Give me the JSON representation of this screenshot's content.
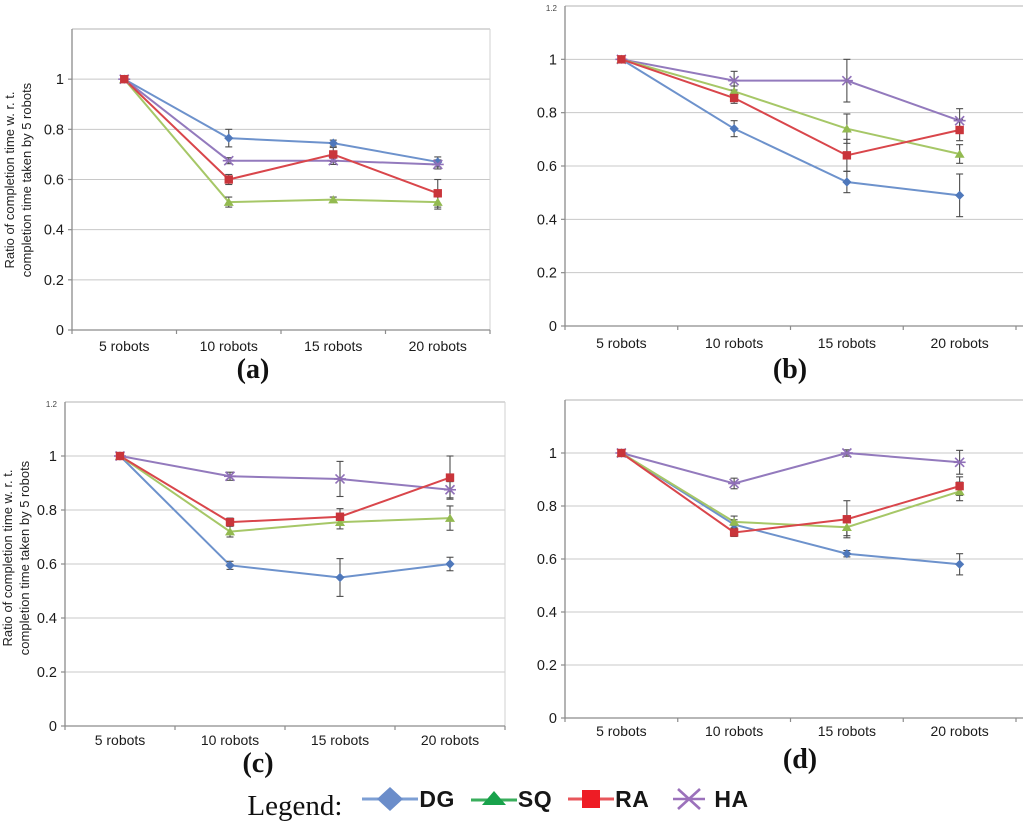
{
  "page": {
    "background": "#ffffff"
  },
  "legend": {
    "title": "Legend:",
    "position": "bottom",
    "items": [
      {
        "label": "DG",
        "marker": "diamond",
        "color": "#6b8dca",
        "line_color": "#7d9fd4"
      },
      {
        "label": "SQ",
        "marker": "triangle",
        "color": "#18a24b",
        "line_color": "#3aae5c"
      },
      {
        "label": "RA",
        "marker": "square",
        "color": "#ee1c25",
        "line_color": "#e8565b"
      },
      {
        "label": "HA",
        "marker": "asterisk",
        "color": "#9b71bb",
        "line_color": "#9b71bb"
      }
    ]
  },
  "chart_data": [
    {
      "id": "a",
      "caption": "(a)",
      "type": "line",
      "error_bars": true,
      "title": "",
      "xlabel": "",
      "ylabel": "Ratio of completion time w. r. t.\ncompletion time taken by 5 robots",
      "ymax_minor_label": "",
      "categories": [
        "5 robots",
        "10 robots",
        "15 robots",
        "20 robots"
      ],
      "yticks": [
        0,
        0.2,
        0.4,
        0.6,
        0.8,
        1
      ],
      "ylim": [
        0,
        1.2
      ],
      "grid": true,
      "series": [
        {
          "name": "DG",
          "marker": "diamond",
          "color": "#4f78bb",
          "line": "#6d92cc",
          "values": [
            1.0,
            0.765,
            0.745,
            0.67
          ],
          "errors": [
            0,
            0.035,
            0.012,
            0.02
          ]
        },
        {
          "name": "SQ",
          "marker": "triangle",
          "color": "#93ba50",
          "line": "#a6c767",
          "values": [
            1.0,
            0.51,
            0.52,
            0.51
          ],
          "errors": [
            0,
            0.02,
            0.01,
            0.028
          ]
        },
        {
          "name": "RA",
          "marker": "square",
          "color": "#c9353b",
          "line": "#d9464b",
          "values": [
            1.0,
            0.6,
            0.7,
            0.545
          ],
          "errors": [
            0,
            0.02,
            0.028,
            0.055
          ]
        },
        {
          "name": "HA",
          "marker": "asterisk",
          "color": "#9070b8",
          "line": "#937abd",
          "values": [
            1.0,
            0.675,
            0.675,
            0.66
          ],
          "errors": [
            0,
            0.012,
            0.015,
            0.018
          ]
        }
      ]
    },
    {
      "id": "b",
      "caption": "(b)",
      "type": "line",
      "error_bars": true,
      "title": "",
      "xlabel": "",
      "ylabel": "",
      "ymax_minor_label": "1.2",
      "categories": [
        "5 robots",
        "10 robots",
        "15 robots",
        "20 robots"
      ],
      "yticks": [
        0,
        0.2,
        0.4,
        0.6,
        0.8,
        1
      ],
      "ylim": [
        0,
        1.2
      ],
      "grid": true,
      "series": [
        {
          "name": "DG",
          "marker": "diamond",
          "color": "#4f78bb",
          "line": "#6d92cc",
          "values": [
            1.0,
            0.74,
            0.54,
            0.49
          ],
          "errors": [
            0,
            0.03,
            0.04,
            0.08
          ]
        },
        {
          "name": "SQ",
          "marker": "triangle",
          "color": "#93ba50",
          "line": "#a6c767",
          "values": [
            1.0,
            0.88,
            0.74,
            0.645
          ],
          "errors": [
            0,
            0.02,
            0.055,
            0.035
          ]
        },
        {
          "name": "RA",
          "marker": "square",
          "color": "#c9353b",
          "line": "#d9464b",
          "values": [
            1.0,
            0.855,
            0.64,
            0.735
          ],
          "errors": [
            0,
            0.02,
            0.06,
            0.04
          ]
        },
        {
          "name": "HA",
          "marker": "asterisk",
          "color": "#9070b8",
          "line": "#937abd",
          "values": [
            1.0,
            0.92,
            0.92,
            0.77
          ],
          "errors": [
            0,
            0.035,
            0.08,
            0.045
          ]
        }
      ]
    },
    {
      "id": "c",
      "caption": "(c)",
      "type": "line",
      "error_bars": true,
      "title": "",
      "xlabel": "",
      "ylabel": "Ratio of completion time w. r. t.\ncompletion time taken by 5 robots",
      "ymax_minor_label": "1.2",
      "categories": [
        "5 robots",
        "10 robots",
        "15 robots",
        "20 robots"
      ],
      "yticks": [
        0,
        0.2,
        0.4,
        0.6,
        0.8,
        1
      ],
      "ylim": [
        0,
        1.2
      ],
      "grid": true,
      "series": [
        {
          "name": "DG",
          "marker": "diamond",
          "color": "#4f78bb",
          "line": "#6d92cc",
          "values": [
            1.0,
            0.595,
            0.55,
            0.6
          ],
          "errors": [
            0,
            0.015,
            0.07,
            0.025
          ]
        },
        {
          "name": "SQ",
          "marker": "triangle",
          "color": "#93ba50",
          "line": "#a6c767",
          "values": [
            1.0,
            0.72,
            0.755,
            0.77
          ],
          "errors": [
            0,
            0.02,
            0.025,
            0.045
          ]
        },
        {
          "name": "RA",
          "marker": "square",
          "color": "#c9353b",
          "line": "#d9464b",
          "values": [
            1.0,
            0.755,
            0.775,
            0.92
          ],
          "errors": [
            0,
            0.015,
            0.03,
            0.08
          ]
        },
        {
          "name": "HA",
          "marker": "asterisk",
          "color": "#9070b8",
          "line": "#937abd",
          "values": [
            1.0,
            0.925,
            0.915,
            0.875
          ],
          "errors": [
            0,
            0.015,
            0.065,
            0.03
          ]
        }
      ]
    },
    {
      "id": "d",
      "caption": "(d)",
      "type": "line",
      "error_bars": true,
      "title": "",
      "xlabel": "",
      "ylabel": "",
      "ymax_minor_label": "",
      "categories": [
        "5 robots",
        "10 robots",
        "15 robots",
        "20 robots"
      ],
      "yticks": [
        0,
        0.2,
        0.4,
        0.6,
        0.8,
        1
      ],
      "ylim": [
        0,
        1.2
      ],
      "grid": true,
      "series": [
        {
          "name": "DG",
          "marker": "diamond",
          "color": "#4f78bb",
          "line": "#6d92cc",
          "values": [
            1.0,
            0.73,
            0.62,
            0.58
          ],
          "errors": [
            0,
            0.018,
            0.012,
            0.04
          ]
        },
        {
          "name": "SQ",
          "marker": "triangle",
          "color": "#93ba50",
          "line": "#a6c767",
          "values": [
            1.0,
            0.74,
            0.72,
            0.855
          ],
          "errors": [
            0,
            0.022,
            0.032,
            0.035
          ]
        },
        {
          "name": "RA",
          "marker": "square",
          "color": "#c9353b",
          "line": "#d9464b",
          "values": [
            1.0,
            0.7,
            0.75,
            0.875
          ],
          "errors": [
            0,
            0.015,
            0.07,
            0.035
          ]
        },
        {
          "name": "HA",
          "marker": "asterisk",
          "color": "#9070b8",
          "line": "#937abd",
          "values": [
            1.0,
            0.885,
            1.0,
            0.965
          ],
          "errors": [
            0,
            0.02,
            0.012,
            0.045
          ]
        }
      ]
    }
  ]
}
